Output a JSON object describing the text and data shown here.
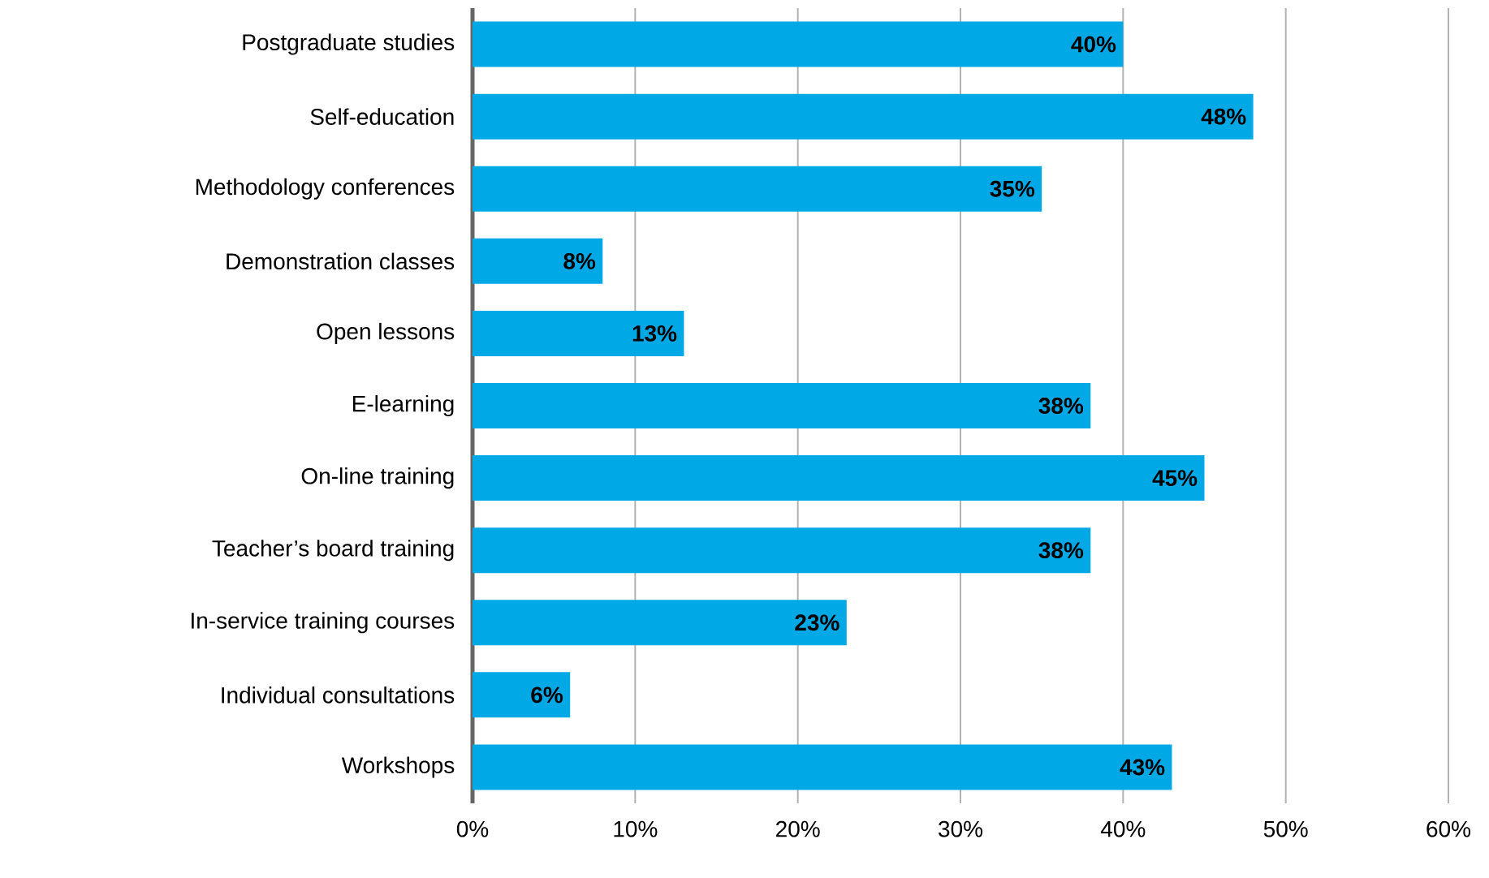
{
  "chart_data": {
    "type": "bar",
    "orientation": "horizontal",
    "categories": [
      "Postgraduate studies",
      "Self-education",
      "Methodology conferences",
      "Demonstration classes",
      "Open lessons",
      "E-learning",
      "On-line training",
      "Teacher’s board training",
      "In-service training courses",
      "Individual consultations",
      "Workshops"
    ],
    "values": [
      40,
      48,
      35,
      8,
      13,
      38,
      45,
      38,
      23,
      6,
      43
    ],
    "value_labels": [
      "40%",
      "48%",
      "35%",
      "8%",
      "13%",
      "38%",
      "45%",
      "38%",
      "23%",
      "6%",
      "43%"
    ],
    "color": "#00a9e6",
    "xlim": [
      0,
      60
    ],
    "xticks": [
      {
        "value": 0,
        "label": "0%"
      },
      {
        "value": 10,
        "label": "10%"
      },
      {
        "value": 20,
        "label": "20%"
      },
      {
        "value": 30,
        "label": "30%"
      },
      {
        "value": 40,
        "label": "40%"
      },
      {
        "value": 50,
        "label": "50%"
      },
      {
        "value": 60,
        "label": "60%"
      }
    ],
    "grid": "x"
  }
}
